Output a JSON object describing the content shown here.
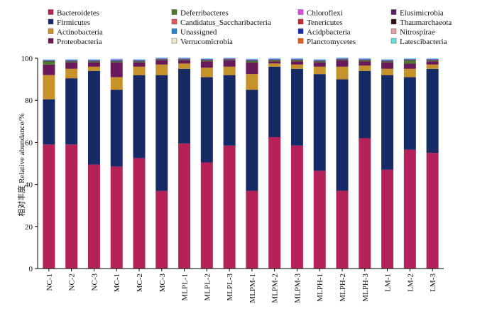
{
  "chart_data": {
    "type": "bar",
    "stacked": true,
    "ylabel": "相对丰度  Relative abundance/%",
    "ylim": [
      0,
      100
    ],
    "yticks": [
      0,
      20,
      40,
      60,
      80,
      100
    ],
    "categories": [
      "NC-1",
      "NC-2",
      "NC-3",
      "MC-1",
      "MC-2",
      "MC-3",
      "MLPL-1",
      "MLPL-2",
      "MLPL-3",
      "MLPM-1",
      "MLPM-2",
      "MLPM-3",
      "MLPH-1",
      "MLPH-2",
      "MLPH-3",
      "LM-1",
      "LM-2",
      "LM-3"
    ],
    "legend": [
      {
        "name": "Bacteroidetes",
        "color": "#b5225a"
      },
      {
        "name": "Deferribacteres",
        "color": "#4a7a2a"
      },
      {
        "name": "Chloroflexi",
        "color": "#d94fe0"
      },
      {
        "name": "Elusimicrobia",
        "color": "#5a1a66"
      },
      {
        "name": "Firmicutes",
        "color": "#162a66"
      },
      {
        "name": "Candidatus_Saccharibacteria",
        "color": "#e05a5a"
      },
      {
        "name": "Tenericutes",
        "color": "#c0302a"
      },
      {
        "name": "Thaumarchaeota",
        "color": "#3a1010"
      },
      {
        "name": "Actinobacteria",
        "color": "#c8922a"
      },
      {
        "name": "Unassigned",
        "color": "#2a86c8"
      },
      {
        "name": "Acidpbacteria",
        "color": "#1a2ab0"
      },
      {
        "name": "Nitrospirae",
        "color": "#e8a0a0"
      },
      {
        "name": "Proteobacteria",
        "color": "#6a1a5a"
      },
      {
        "name": "Verrucomicrobia",
        "color": "#f0e6c8"
      },
      {
        "name": "Planctomycetes",
        "color": "#e06020"
      },
      {
        "name": "Latescibacteria",
        "color": "#60e0e0"
      }
    ],
    "series": [
      {
        "name": "Bacteroidetes",
        "color": "#b5225a",
        "values": [
          59,
          59,
          49.5,
          48.5,
          52.5,
          37,
          59.5,
          50.5,
          58.5,
          37,
          62.5,
          58.5,
          46.5,
          37,
          62,
          47,
          56.5,
          55
        ]
      },
      {
        "name": "Firmicutes",
        "color": "#162a66",
        "values": [
          21.5,
          31.5,
          44.5,
          36.5,
          39.5,
          55,
          35.5,
          40.5,
          33.5,
          48,
          33.5,
          36.5,
          46,
          53,
          32,
          45,
          34.5,
          40
        ]
      },
      {
        "name": "Actinobacteria",
        "color": "#c8922a",
        "values": [
          11.5,
          4.5,
          2,
          6,
          4,
          5,
          2.5,
          4.5,
          4,
          7.5,
          1.5,
          2,
          3.5,
          6,
          2.5,
          3,
          4,
          2
        ]
      },
      {
        "name": "Proteobacteria",
        "color": "#6a1a5a",
        "values": [
          5,
          3,
          2,
          7,
          2,
          2,
          1.5,
          3,
          3,
          5.5,
          1,
          1.5,
          2,
          3,
          2,
          3,
          2.5,
          1.5
        ]
      },
      {
        "name": "Deferribacteres",
        "color": "#4a7a2a",
        "values": [
          1.5,
          0.5,
          0.5,
          0.5,
          0.5,
          0.3,
          0.3,
          0.5,
          0.3,
          0.7,
          0.5,
          0.5,
          0.5,
          0.3,
          0.5,
          0.5,
          1.5,
          0.5
        ]
      },
      {
        "name": "Elusimicrobia",
        "color": "#5a1a66",
        "values": [
          0.3,
          0.3,
          0.3,
          0.3,
          0.3,
          0.3,
          0.3,
          0.3,
          0.3,
          0.3,
          0.3,
          0.3,
          0.3,
          0.3,
          0.3,
          0.3,
          0.3,
          0.3
        ]
      },
      {
        "name": "Unassigned",
        "color": "#2a86c8",
        "values": [
          0.2,
          0.3,
          0.3,
          0.4,
          0.3,
          0.3,
          0.3,
          0.2,
          0.2,
          0.3,
          0.3,
          0.3,
          0.3,
          0.3,
          0.3,
          0.3,
          0.2,
          0.2
        ]
      },
      {
        "name": "Chloroflexi",
        "color": "#d94fe0",
        "values": [
          0.2,
          0.2,
          0.2,
          0.3,
          0.2,
          0.2,
          0.2,
          0.2,
          0.2,
          0.2,
          0.2,
          0.2,
          0.2,
          0.2,
          0.2,
          0.2,
          0.2,
          0.2
        ]
      },
      {
        "name": "Latescibacteria",
        "color": "#60e0e0",
        "values": [
          0.3,
          0.3,
          0.3,
          0.3,
          0.3,
          0.3,
          0.3,
          0.3,
          0.3,
          0.3,
          0.3,
          0.3,
          0.3,
          0.3,
          0.3,
          0.3,
          0.3,
          0.3
        ]
      }
    ]
  }
}
